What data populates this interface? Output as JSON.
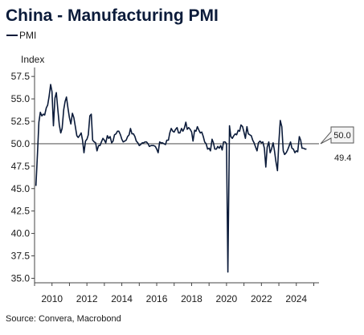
{
  "chart_data": {
    "type": "line",
    "title": "China - Manufacturing PMI",
    "ylabel": "Index",
    "xlabel": "",
    "source": "Source: Convera, Macrobond",
    "legend": "top-left",
    "grid": false,
    "ylim": [
      34.5,
      58.5
    ],
    "xlim": [
      2009.0,
      2025.3
    ],
    "y_ticks": [
      "57.5",
      "55.0",
      "52.5",
      "50.0",
      "47.5",
      "45.0",
      "42.5",
      "40.0",
      "37.5",
      "35.0"
    ],
    "x_ticks": [
      "2010",
      "2012",
      "2014",
      "2016",
      "2018",
      "2020",
      "2022",
      "2024"
    ],
    "reference_line": 50.0,
    "callout_label": "50.0",
    "last_value_label": "49.4",
    "colors": {
      "series": "#0b1b3a",
      "axis": "#444444",
      "reference": "#333333"
    },
    "series": [
      {
        "name": "PMI",
        "x": [
          2009.08,
          2009.17,
          2009.25,
          2009.33,
          2009.42,
          2009.5,
          2009.58,
          2009.67,
          2009.75,
          2009.83,
          2009.92,
          2010.0,
          2010.08,
          2010.17,
          2010.25,
          2010.33,
          2010.42,
          2010.5,
          2010.58,
          2010.67,
          2010.75,
          2010.83,
          2010.92,
          2011.0,
          2011.08,
          2011.17,
          2011.25,
          2011.33,
          2011.42,
          2011.5,
          2011.58,
          2011.67,
          2011.75,
          2011.83,
          2011.92,
          2012.0,
          2012.08,
          2012.17,
          2012.25,
          2012.33,
          2012.42,
          2012.5,
          2012.58,
          2012.67,
          2012.75,
          2012.83,
          2012.92,
          2013.0,
          2013.08,
          2013.17,
          2013.25,
          2013.33,
          2013.42,
          2013.5,
          2013.58,
          2013.67,
          2013.75,
          2013.83,
          2013.92,
          2014.0,
          2014.08,
          2014.17,
          2014.25,
          2014.33,
          2014.42,
          2014.5,
          2014.58,
          2014.67,
          2014.75,
          2014.83,
          2014.92,
          2015.0,
          2015.08,
          2015.17,
          2015.25,
          2015.33,
          2015.42,
          2015.5,
          2015.58,
          2015.67,
          2015.75,
          2015.83,
          2015.92,
          2016.0,
          2016.08,
          2016.17,
          2016.25,
          2016.33,
          2016.42,
          2016.5,
          2016.58,
          2016.67,
          2016.75,
          2016.83,
          2016.92,
          2017.0,
          2017.08,
          2017.17,
          2017.25,
          2017.33,
          2017.42,
          2017.5,
          2017.58,
          2017.67,
          2017.75,
          2017.83,
          2017.92,
          2018.0,
          2018.08,
          2018.17,
          2018.25,
          2018.33,
          2018.42,
          2018.5,
          2018.58,
          2018.67,
          2018.75,
          2018.83,
          2018.92,
          2019.0,
          2019.08,
          2019.17,
          2019.25,
          2019.33,
          2019.42,
          2019.5,
          2019.58,
          2019.67,
          2019.75,
          2019.83,
          2019.92,
          2020.0,
          2020.08,
          2020.17,
          2020.25,
          2020.33,
          2020.42,
          2020.5,
          2020.58,
          2020.67,
          2020.75,
          2020.83,
          2020.92,
          2021.0,
          2021.08,
          2021.17,
          2021.25,
          2021.33,
          2021.42,
          2021.5,
          2021.58,
          2021.67,
          2021.75,
          2021.83,
          2021.92,
          2022.0,
          2022.08,
          2022.17,
          2022.25,
          2022.33,
          2022.42,
          2022.5,
          2022.58,
          2022.67,
          2022.75,
          2022.83,
          2022.92,
          2023.0,
          2023.08,
          2023.17,
          2023.25,
          2023.33,
          2023.42,
          2023.5,
          2023.58,
          2023.67,
          2023.75,
          2023.83,
          2023.92,
          2024.0,
          2024.08,
          2024.17,
          2024.25,
          2024.33,
          2024.42,
          2024.5,
          2024.58
        ],
        "y": [
          45.3,
          49.0,
          52.4,
          53.5,
          53.1,
          53.3,
          53.2,
          54.0,
          54.3,
          55.2,
          56.6,
          55.8,
          52.0,
          55.1,
          55.7,
          53.9,
          52.1,
          51.2,
          51.7,
          53.8,
          54.7,
          55.2,
          53.9,
          52.9,
          52.2,
          53.4,
          52.9,
          52.0,
          50.9,
          50.7,
          50.9,
          51.2,
          50.4,
          49.0,
          50.3,
          50.5,
          51.0,
          53.1,
          53.3,
          50.4,
          50.2,
          50.1,
          49.2,
          49.8,
          49.8,
          50.2,
          50.6,
          50.4,
          50.1,
          50.9,
          50.6,
          50.8,
          50.1,
          50.3,
          51.0,
          51.1,
          51.4,
          51.4,
          51.0,
          50.5,
          50.2,
          50.3,
          50.4,
          50.8,
          51.0,
          51.7,
          51.1,
          51.1,
          50.8,
          50.3,
          50.1,
          49.8,
          49.9,
          50.1,
          50.1,
          50.2,
          50.2,
          50.0,
          49.7,
          49.8,
          49.8,
          49.8,
          49.7,
          49.4,
          49.0,
          50.2,
          50.1,
          50.1,
          50.0,
          49.9,
          50.4,
          50.4,
          51.2,
          51.7,
          51.4,
          51.3,
          51.6,
          51.8,
          51.2,
          51.2,
          51.7,
          51.4,
          51.7,
          52.4,
          51.6,
          51.8,
          51.6,
          51.3,
          50.3,
          51.5,
          51.4,
          51.9,
          51.5,
          51.2,
          51.3,
          50.8,
          50.2,
          50.0,
          49.4,
          49.5,
          49.2,
          50.5,
          50.1,
          49.4,
          49.4,
          49.7,
          49.5,
          49.8,
          49.3,
          50.2,
          50.2,
          50.0,
          35.7,
          52.0,
          50.8,
          50.6,
          50.9,
          51.1,
          51.0,
          51.5,
          51.4,
          52.1,
          51.9,
          51.3,
          50.6,
          51.9,
          51.1,
          51.0,
          50.9,
          50.4,
          50.1,
          49.6,
          49.2,
          50.1,
          50.3,
          50.1,
          50.2,
          49.5,
          47.4,
          49.6,
          50.2,
          49.0,
          49.4,
          50.1,
          49.2,
          48.0,
          47.0,
          50.1,
          52.6,
          51.9,
          49.2,
          48.8,
          49.0,
          49.3,
          49.7,
          50.2,
          49.5,
          49.4,
          49.0,
          49.2,
          49.1,
          50.8,
          50.4,
          49.5,
          49.5,
          49.4,
          49.4
        ]
      }
    ]
  }
}
